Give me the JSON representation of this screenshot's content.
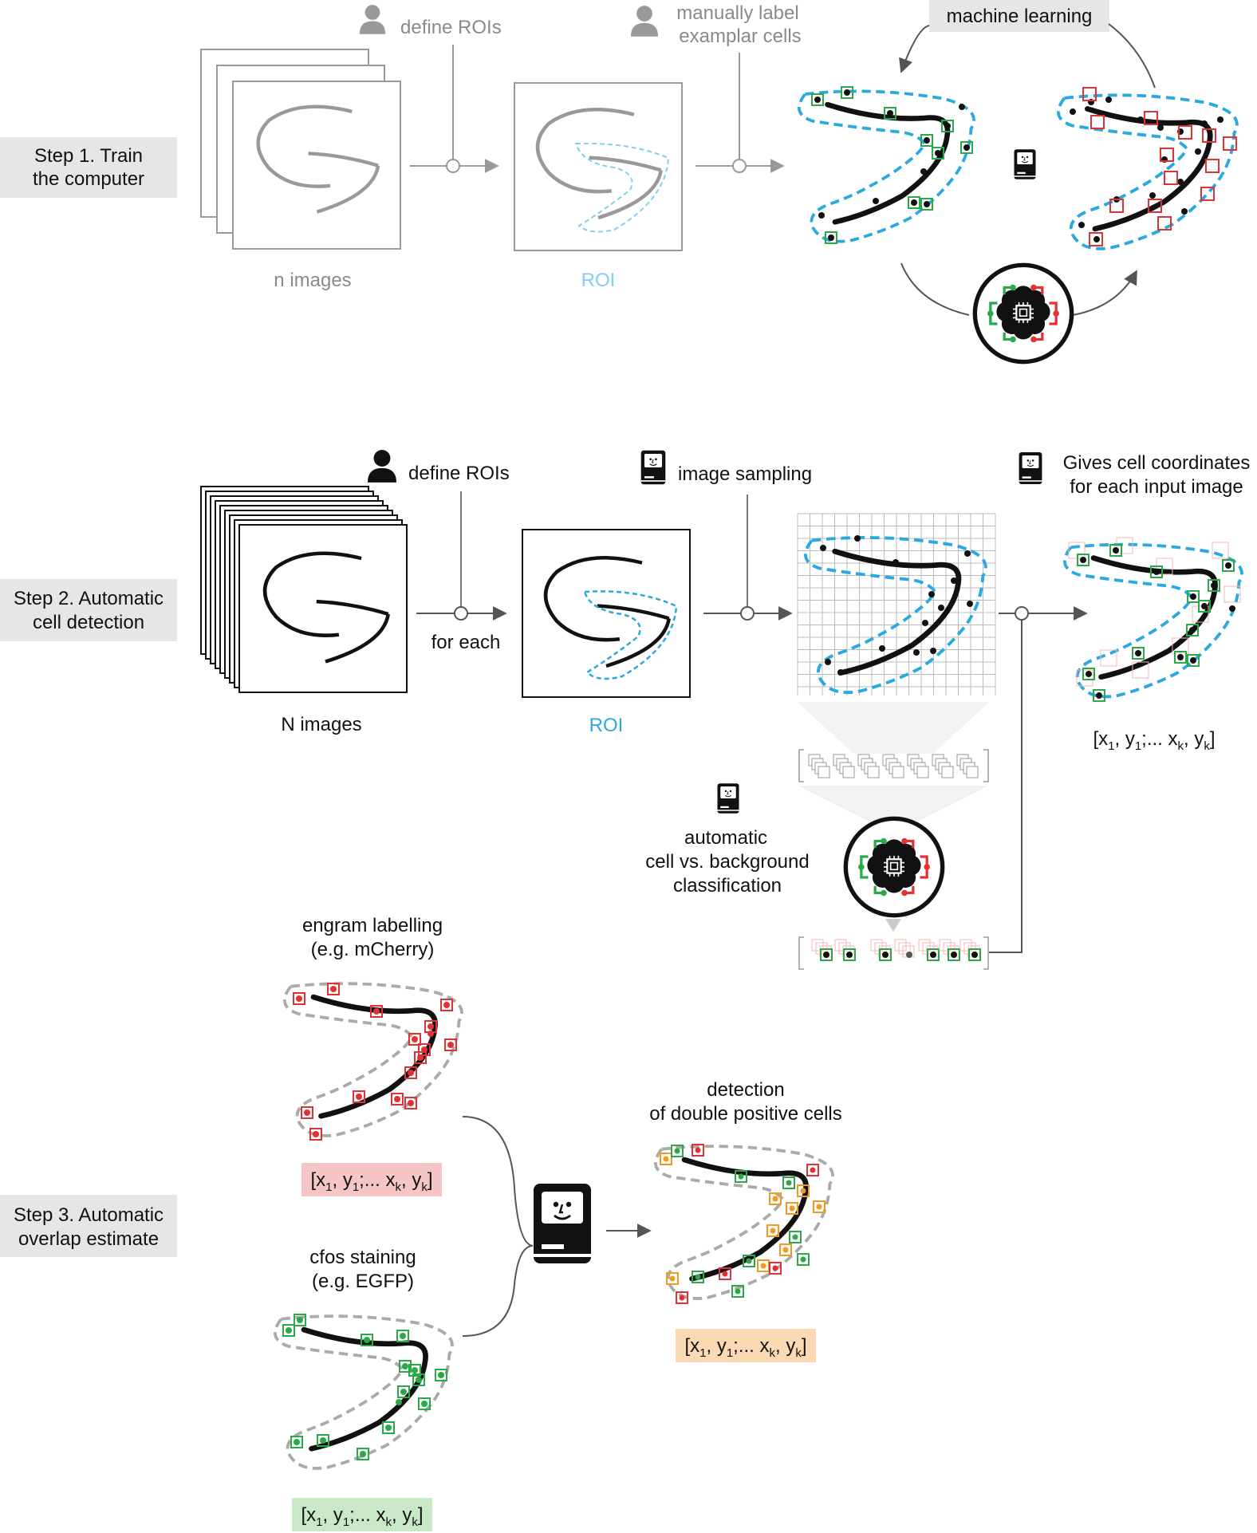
{
  "step1": {
    "label_line1": "Step 1. Train",
    "label_line2": "the computer",
    "define_rois": "define ROIs",
    "manual_line1": "manually label",
    "manual_line2": "examplar cells",
    "machine_learning": "machine learning",
    "n_images": "n images",
    "roi": "ROI"
  },
  "step2": {
    "label_line1": "Step 2. Automatic",
    "label_line2": "cell detection",
    "define_rois": "define ROIs",
    "image_sampling": "image sampling",
    "gives_line1": "Gives cell coordinates",
    "gives_line2": "for each input image",
    "for_each": "for each",
    "n_images": "N images",
    "roi": "ROI",
    "classification_line1": "automatic",
    "classification_line2": "cell vs. background",
    "classification_line3": "classification",
    "coords": "[x1, y1;... xk, yk]"
  },
  "step3": {
    "label_line1": "Step 3. Automatic",
    "label_line2": "overlap estimate",
    "engram_line1": "engram labelling",
    "engram_line2": "(e.g. mCherry)",
    "cfos_line1": "cfos staining",
    "cfos_line2": "(e.g. EGFP)",
    "double_line1": "detection",
    "double_line2": "of double positive cells",
    "coords_red": "[x1, y1;... xk, yk]",
    "coords_green": "[x1, y1;... xk, yk]",
    "coords_orange": "[x1, y1;... xk, yk]"
  },
  "colors": {
    "roi_blue": "#29a9e0",
    "cell_green": "#2aa84a",
    "cell_red": "#e03236",
    "cell_orange": "#f39a1e",
    "label_box": "#e6e6e6",
    "coords_red_bg": "#f6c6c6",
    "coords_green_bg": "#c9e8c8",
    "coords_orange_bg": "#fbd9b4"
  },
  "icons": [
    "person-icon",
    "computer-icon",
    "neural-network-icon",
    "chip-icon"
  ]
}
